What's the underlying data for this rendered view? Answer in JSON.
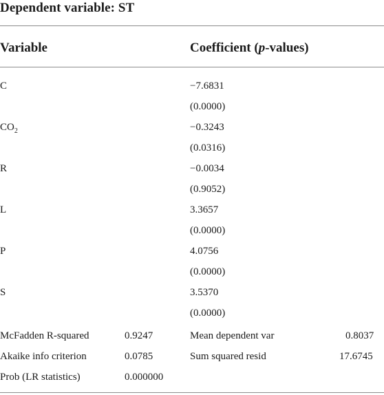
{
  "title": "Dependent variable: ST",
  "headers": {
    "variable": "Variable",
    "coef_pre": "Coefficient (",
    "coef_p": "p",
    "coef_post": "-values)"
  },
  "rows": [
    {
      "name": "C",
      "sub": "",
      "coef": "−7.6831",
      "p": "(0.0000)"
    },
    {
      "name": "CO",
      "sub": "2",
      "coef": "−0.3243",
      "p": "(0.0316)"
    },
    {
      "name": "R",
      "sub": "",
      "coef": "−0.0034",
      "p": "(0.9052)"
    },
    {
      "name": "L",
      "sub": "",
      "coef": "3.3657",
      "p": "(0.0000)"
    },
    {
      "name": "P",
      "sub": "",
      "coef": "4.0756",
      "p": "(0.0000)"
    },
    {
      "name": "S",
      "sub": "",
      "coef": "3.5370",
      "p": "(0.0000)"
    }
  ],
  "stats": [
    {
      "label": "McFadden R-squared",
      "value": "0.9247",
      "label2": "Mean dependent var",
      "value2": "0.8037"
    },
    {
      "label": "Akaike info criterion",
      "value": "0.0785",
      "label2": "Sum squared resid",
      "value2": "17.6745"
    },
    {
      "label": "Prob (LR statistics)",
      "value": "0.000000",
      "label2": "",
      "value2": ""
    }
  ]
}
